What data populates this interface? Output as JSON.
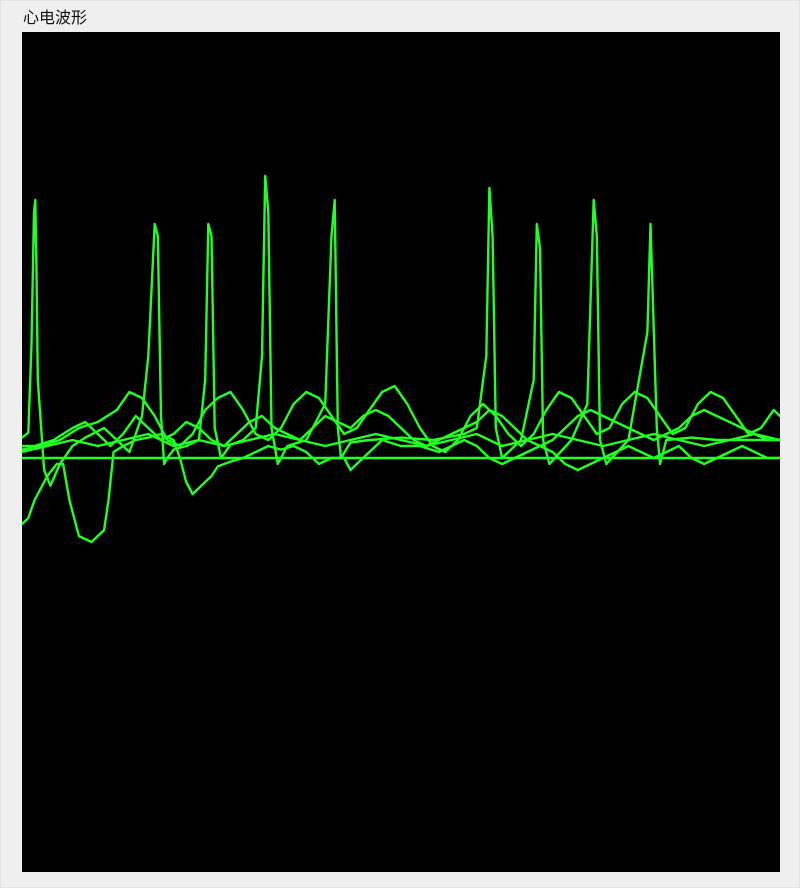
{
  "window": {
    "title": "心电波形"
  },
  "chart_data": {
    "type": "line",
    "title": "",
    "xlabel": "",
    "ylabel": "",
    "grid": false,
    "legend": "none",
    "background_color": "#000000",
    "line_color": "#22ff22",
    "x_range": [
      0,
      120
    ],
    "y_range": [
      -4,
      4
    ],
    "series": [
      {
        "x": [
          0,
          1.0,
          1.5,
          1.9,
          2.1,
          2.3,
          2.5,
          3.5,
          4.5,
          6.0,
          8.0,
          10.0,
          13.0,
          15.0,
          17.0,
          19.0,
          20.0,
          21.0,
          21.5,
          22.0,
          22.5,
          23.0,
          24.0,
          26.0,
          28.0,
          29.0,
          29.5,
          30.0,
          30.5,
          31.5,
          33.0,
          35.0,
          37.0,
          38.0,
          38.5,
          39.0,
          39.5,
          40.5,
          42.0,
          45.0,
          48.0,
          49.0,
          49.5,
          50.0,
          50.5,
          52.0,
          55.0,
          60.0,
          65.0,
          70.0,
          72.0,
          73.5,
          74.0,
          74.5,
          75.0,
          76.0,
          79.0,
          81.0,
          81.5,
          82.0,
          82.5,
          83.5,
          87.0,
          89.5,
          90.5,
          91.0,
          91.5,
          92.5,
          96.0,
          99.0,
          99.5,
          100.5,
          101.0,
          102.0,
          106.0,
          110.0,
          114.0,
          118.0,
          120.0
        ],
        "y": [
          0.12,
          0.16,
          0.9,
          2.0,
          2.1,
          1.5,
          0.6,
          -0.15,
          -0.28,
          -0.1,
          0.05,
          0.12,
          0.2,
          0.1,
          0.0,
          0.3,
          0.8,
          1.9,
          1.8,
          0.3,
          -0.1,
          -0.05,
          0.02,
          0.05,
          0.1,
          0.6,
          1.9,
          1.8,
          0.2,
          -0.05,
          0.06,
          0.1,
          0.2,
          0.8,
          2.3,
          2.0,
          0.2,
          -0.1,
          0.05,
          0.1,
          0.4,
          1.8,
          2.1,
          0.2,
          -0.05,
          0.08,
          0.1,
          0.12,
          0.1,
          0.15,
          0.2,
          0.8,
          2.2,
          1.8,
          0.2,
          -0.05,
          0.1,
          0.6,
          1.9,
          1.7,
          0.1,
          -0.1,
          0.1,
          0.4,
          2.1,
          1.8,
          0.1,
          -0.1,
          0.1,
          1.0,
          1.9,
          0.2,
          -0.1,
          0.1,
          0.12,
          0.1,
          0.1,
          0.1,
          0.1
        ]
      },
      {
        "x": [
          0,
          1.0,
          2.0,
          4.0,
          5.5,
          6.5,
          7.5,
          9.0,
          11.0,
          13.0,
          13.7,
          14.5,
          16.0,
          18.0,
          20.0,
          22.0,
          24.0,
          25.0,
          26.0,
          27.0,
          28.0,
          29.0,
          30.0,
          31.0,
          33.0,
          35.0,
          37.0,
          39.0,
          41.0,
          43.0,
          45.0,
          47.0,
          49.0,
          51.0,
          52.0,
          53.0,
          55.0,
          57.0,
          60.0,
          63.0,
          66.0,
          68.0,
          70.0,
          72.0,
          74.0,
          76.0,
          78.0,
          80.0,
          82.0,
          84.0,
          86.0,
          88.0,
          90.0,
          92.0,
          94.0,
          96.0,
          98.0,
          100.0,
          102.0,
          104.0,
          106.0,
          108.0,
          110.0,
          112.0,
          114.0,
          116.0,
          118.0,
          120.0
        ],
        "y": [
          -0.6,
          -0.55,
          -0.4,
          -0.2,
          -0.1,
          -0.1,
          -0.4,
          -0.7,
          -0.75,
          -0.65,
          -0.4,
          0.0,
          0.05,
          0.1,
          0.12,
          0.15,
          0.1,
          -0.05,
          -0.25,
          -0.35,
          -0.3,
          -0.25,
          -0.2,
          -0.12,
          -0.08,
          -0.05,
          0.0,
          0.05,
          0.02,
          0.05,
          0.0,
          -0.1,
          -0.05,
          -0.05,
          -0.15,
          -0.1,
          0.0,
          0.1,
          0.05,
          0.05,
          0.0,
          0.05,
          0.1,
          0.05,
          -0.05,
          -0.1,
          -0.05,
          0.0,
          0.05,
          0.0,
          -0.1,
          -0.15,
          -0.1,
          -0.05,
          0.0,
          0.05,
          0.0,
          -0.05,
          0.0,
          0.05,
          -0.05,
          -0.1,
          -0.05,
          0.0,
          0.05,
          0.0,
          -0.05,
          -0.05
        ]
      },
      {
        "x": [
          0,
          2.0,
          5.0,
          8.0,
          10.0,
          12.0,
          14.0,
          16.0,
          18.0,
          20.0,
          22.0,
          24.0,
          26.0,
          28.0,
          30.0,
          32.0,
          34.0,
          36.0,
          38.0,
          40.0,
          42.0,
          44.0,
          46.0,
          48.0,
          50.0,
          52.0,
          54.0,
          56.0,
          58.0,
          60.0,
          62.0,
          64.0,
          66.0,
          68.0,
          70.0,
          72.0,
          74.0,
          76.0,
          78.0,
          80.0,
          82.0,
          84.0,
          86.0,
          88.0,
          90.0,
          92.0,
          94.0,
          96.0,
          98.0,
          100.0,
          102.0,
          104.0,
          106.0,
          108.0,
          110.0,
          112.0,
          114.0,
          116.0,
          118.0,
          120.0
        ],
        "y": [
          0.05,
          0.05,
          0.1,
          0.2,
          0.25,
          0.15,
          0.05,
          0.15,
          0.3,
          0.2,
          0.1,
          0.15,
          0.25,
          0.2,
          0.1,
          0.05,
          0.15,
          0.25,
          0.3,
          0.2,
          0.15,
          0.1,
          0.2,
          0.3,
          0.25,
          0.2,
          0.3,
          0.35,
          0.3,
          0.2,
          0.1,
          0.05,
          0.1,
          0.15,
          0.2,
          0.25,
          0.35,
          0.3,
          0.2,
          0.1,
          0.05,
          0.1,
          0.2,
          0.3,
          0.35,
          0.3,
          0.25,
          0.2,
          0.15,
          0.1,
          0.15,
          0.2,
          0.3,
          0.35,
          0.3,
          0.25,
          0.2,
          0.15,
          0.1,
          0.1
        ]
      },
      {
        "x": [
          0,
          3.0,
          6.0,
          9.0,
          12.0,
          15.0,
          17.0,
          19.0,
          21.0,
          23.0,
          25.0,
          27.0,
          29.0,
          31.0,
          33.0,
          35.0,
          37.0,
          39.0,
          41.0,
          43.0,
          45.0,
          47.0,
          49.0,
          51.0,
          53.0,
          55.0,
          57.0,
          59.0,
          61.0,
          63.0,
          65.0,
          67.0,
          69.0,
          71.0,
          73.0,
          75.0,
          77.0,
          79.0,
          81.0,
          83.0,
          85.0,
          87.0,
          89.0,
          91.0,
          93.0,
          95.0,
          97.0,
          99.0,
          101.0,
          103.0,
          105.0,
          107.0,
          109.0,
          111.0,
          113.0,
          115.0,
          117.0,
          119.0,
          120.0
        ],
        "y": [
          0.02,
          0.05,
          0.1,
          0.2,
          0.25,
          0.35,
          0.5,
          0.45,
          0.3,
          0.1,
          0.05,
          0.15,
          0.35,
          0.45,
          0.5,
          0.35,
          0.15,
          0.1,
          0.2,
          0.4,
          0.5,
          0.45,
          0.3,
          0.15,
          0.2,
          0.35,
          0.5,
          0.55,
          0.4,
          0.2,
          0.05,
          0.0,
          0.1,
          0.3,
          0.4,
          0.3,
          0.15,
          0.05,
          0.15,
          0.35,
          0.5,
          0.45,
          0.3,
          0.15,
          0.2,
          0.4,
          0.5,
          0.45,
          0.3,
          0.15,
          0.2,
          0.4,
          0.5,
          0.45,
          0.3,
          0.15,
          0.2,
          0.35,
          0.3
        ]
      },
      {
        "x": [
          0,
          4.0,
          8.0,
          12.0,
          16.0,
          20.0,
          24.0,
          28.0,
          32.0,
          36.0,
          40.0,
          44.0,
          48.0,
          52.0,
          56.0,
          60.0,
          64.0,
          68.0,
          72.0,
          76.0,
          80.0,
          84.0,
          88.0,
          92.0,
          96.0,
          100.0,
          104.0,
          108.0,
          112.0,
          116.0,
          120.0
        ],
        "y": [
          0.0,
          0.05,
          0.1,
          0.05,
          0.1,
          0.15,
          0.05,
          0.1,
          0.05,
          0.1,
          0.15,
          0.1,
          0.05,
          0.1,
          0.15,
          0.1,
          0.05,
          0.1,
          0.15,
          0.05,
          0.1,
          0.15,
          0.1,
          0.05,
          0.1,
          0.15,
          0.1,
          0.05,
          0.1,
          0.15,
          0.1
        ]
      },
      {
        "x": [
          0,
          6.0,
          12.0,
          18.0,
          24.0,
          30.0,
          36.0,
          42.0,
          48.0,
          54.0,
          60.0,
          66.0,
          72.0,
          78.0,
          84.0,
          90.0,
          96.0,
          102.0,
          108.0,
          114.0,
          120.0
        ],
        "y": [
          -0.05,
          -0.05,
          -0.05,
          -0.05,
          -0.05,
          -0.05,
          -0.05,
          -0.05,
          -0.05,
          -0.05,
          -0.05,
          -0.05,
          -0.05,
          -0.05,
          -0.05,
          -0.05,
          -0.05,
          -0.05,
          -0.05,
          -0.05,
          -0.05
        ]
      }
    ]
  }
}
